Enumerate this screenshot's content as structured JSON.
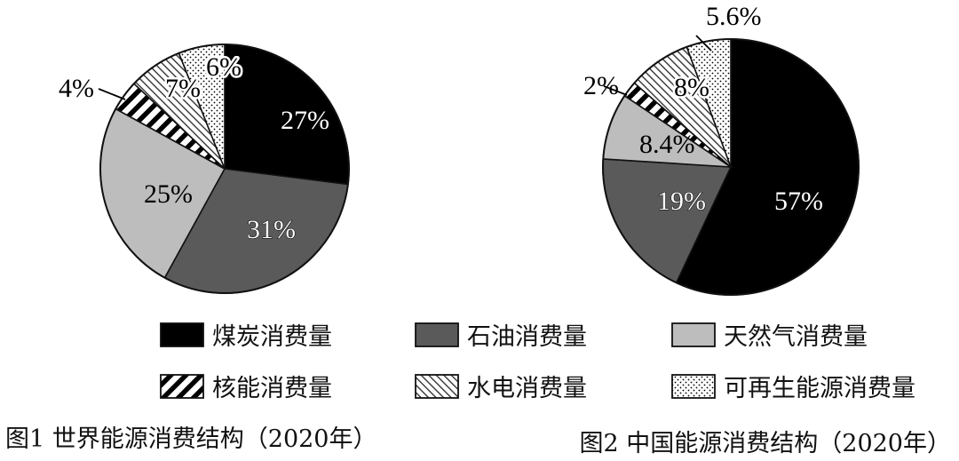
{
  "chart_data": [
    {
      "type": "pie",
      "title": "图1 世界能源消费结构（2020年）",
      "series": [
        {
          "name": "煤炭消费量",
          "value": 27,
          "label": "27%"
        },
        {
          "name": "石油消费量",
          "value": 31,
          "label": "31%"
        },
        {
          "name": "天然气消费量",
          "value": 25,
          "label": "25%"
        },
        {
          "name": "核能消费量",
          "value": 4,
          "label": "4%"
        },
        {
          "name": "水电消费量",
          "value": 7,
          "label": "7%"
        },
        {
          "name": "可再生能源消费量",
          "value": 6,
          "label": "6%"
        }
      ]
    },
    {
      "type": "pie",
      "title": "图2 中国能源消费结构（2020年）",
      "series": [
        {
          "name": "煤炭消费量",
          "value": 57,
          "label": "57%"
        },
        {
          "name": "石油消费量",
          "value": 19,
          "label": "19%"
        },
        {
          "name": "天然气消费量",
          "value": 8.4,
          "label": "8.4%"
        },
        {
          "name": "核能消费量",
          "value": 2,
          "label": "2%"
        },
        {
          "name": "水电消费量",
          "value": 8,
          "label": "8%"
        },
        {
          "name": "可再生能源消费量",
          "value": 5.6,
          "label": "5.6%"
        }
      ]
    }
  ],
  "legend": [
    {
      "label": "煤炭消费量",
      "fill": "solid-black"
    },
    {
      "label": "石油消费量",
      "fill": "solid-dark-gray"
    },
    {
      "label": "天然气消费量",
      "fill": "solid-light-gray"
    },
    {
      "label": "核能消费量",
      "fill": "thick-diagonal-stripes"
    },
    {
      "label": "水电消费量",
      "fill": "thin-diagonal-hatch"
    },
    {
      "label": "可再生能源消费量",
      "fill": "dots"
    }
  ],
  "colors": {
    "coal": "#000000",
    "oil": "#5a5a5a",
    "gas": "#bdbdbd",
    "outline": "#111111"
  }
}
